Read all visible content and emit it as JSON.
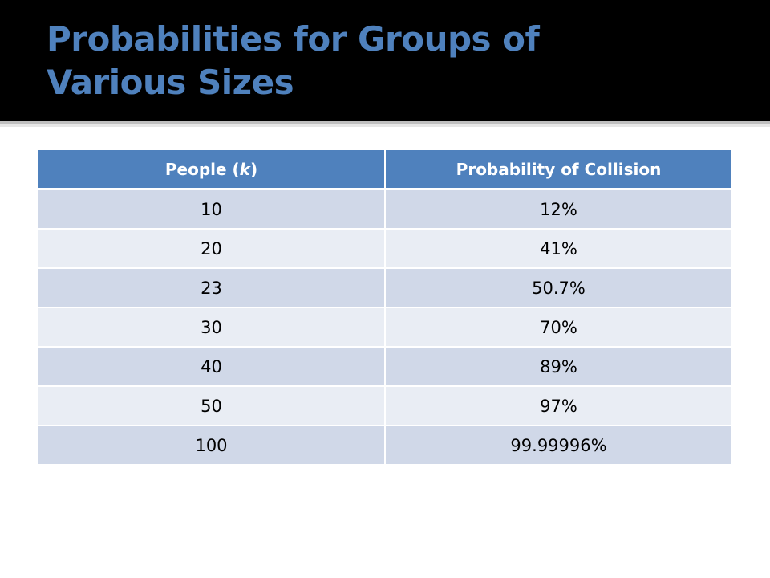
{
  "slide": {
    "title_line1": "Probabilities for Groups of",
    "title_line2": "Various Sizes"
  },
  "table": {
    "headers": {
      "col1_prefix": "People (",
      "col1_var": "k",
      "col1_suffix": ")",
      "col2": "Probability of Collision"
    },
    "rows": [
      {
        "people": "10",
        "probability": "12%"
      },
      {
        "people": "20",
        "probability": "41%"
      },
      {
        "people": "23",
        "probability": "50.7%"
      },
      {
        "people": "30",
        "probability": "70%"
      },
      {
        "people": "40",
        "probability": "89%"
      },
      {
        "people": "50",
        "probability": "97%"
      },
      {
        "people": "100",
        "probability": "99.99996%"
      }
    ]
  },
  "colors": {
    "title_band": "#000000",
    "title_text": "#4f81bd",
    "header_fill": "#4f81bd",
    "row_odd": "#d0d8e8",
    "row_even": "#e9edf4"
  }
}
